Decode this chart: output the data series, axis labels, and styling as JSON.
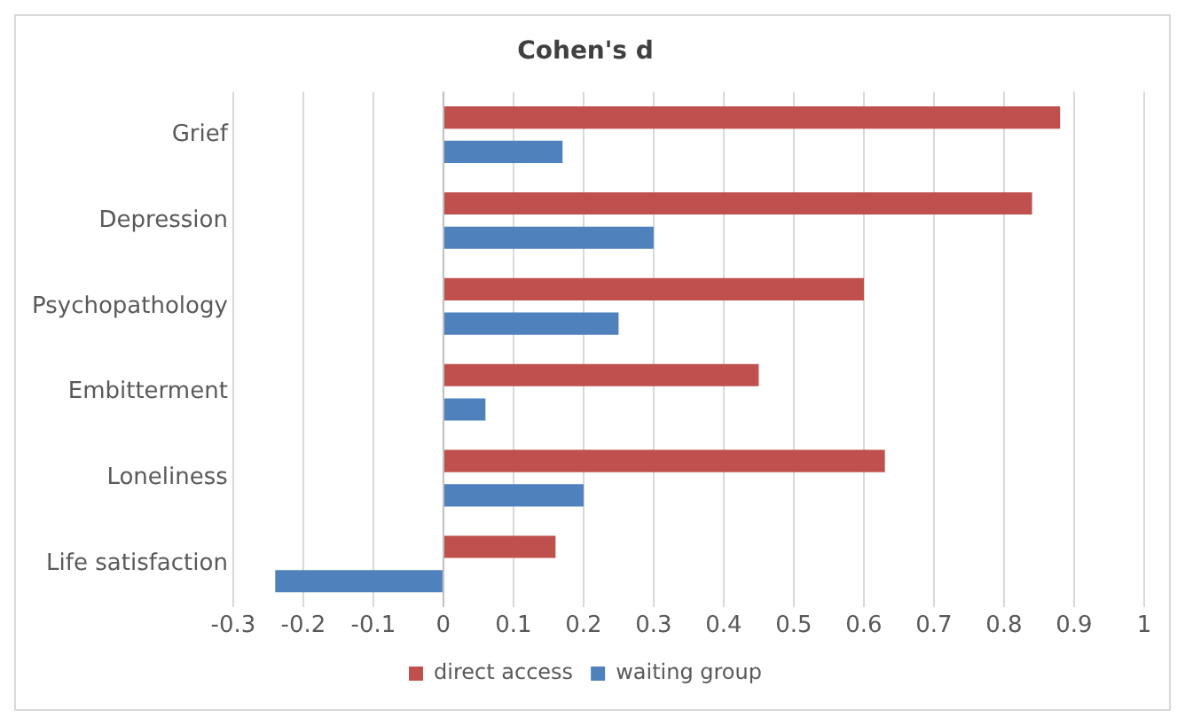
{
  "chart_data": {
    "type": "bar",
    "orientation": "horizontal",
    "title": "Cohen's d",
    "categories": [
      "Grief",
      "Depression",
      "Psychopathology",
      "Embitterment",
      "Loneliness",
      "Life satisfaction"
    ],
    "series": [
      {
        "name": "direct access",
        "color": "#c0504d",
        "values": [
          0.88,
          0.84,
          0.6,
          0.45,
          0.63,
          0.16
        ]
      },
      {
        "name": "waiting group",
        "color": "#4f81bd",
        "values": [
          0.17,
          0.3,
          0.25,
          0.06,
          0.2,
          -0.24
        ]
      }
    ],
    "xlim": [
      -0.3,
      1
    ],
    "xticks": [
      -0.3,
      -0.2,
      -0.1,
      0,
      0.1,
      0.2,
      0.3,
      0.4,
      0.5,
      0.6,
      0.7,
      0.8,
      0.9,
      1
    ],
    "grid": "x",
    "legend": "bottom"
  }
}
